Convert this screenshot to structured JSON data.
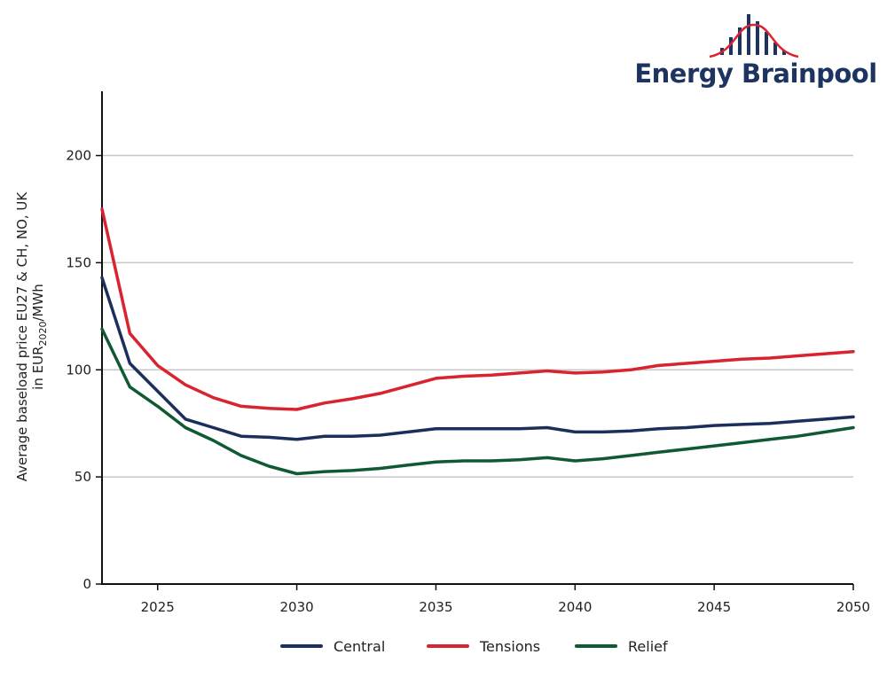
{
  "logo": {
    "text": "Energy Brainpool",
    "text_color": "#1d3461",
    "accent_color": "#d9232e"
  },
  "chart_data": {
    "type": "line",
    "title": "",
    "ylabel_line1": "Average baseload price EU27 & CH, NO, UK",
    "ylabel_line2_prefix": "in EUR",
    "ylabel_line2_sub": "2020",
    "ylabel_line2_suffix": "/MWh",
    "xlabel": "",
    "xlim": [
      2023,
      2050
    ],
    "ylim": [
      0,
      230
    ],
    "xticks": [
      2025,
      2030,
      2035,
      2040,
      2045,
      2050
    ],
    "yticks": [
      0,
      50,
      100,
      150,
      200
    ],
    "grid": "horizontal",
    "legend": "bottom",
    "x": [
      2023,
      2024,
      2025,
      2026,
      2027,
      2028,
      2029,
      2030,
      2031,
      2032,
      2033,
      2034,
      2035,
      2036,
      2037,
      2038,
      2039,
      2040,
      2041,
      2042,
      2043,
      2044,
      2045,
      2046,
      2047,
      2048,
      2049,
      2050
    ],
    "series": [
      {
        "name": "Central",
        "color": "#1b2f5c",
        "values": [
          143,
          103,
          90,
          77,
          73,
          69,
          68.5,
          67.5,
          69,
          69,
          69.5,
          71,
          72.5,
          72.5,
          72.5,
          72.5,
          73,
          71,
          71,
          71.5,
          72.5,
          73,
          74,
          74.5,
          75,
          76,
          77,
          78
        ]
      },
      {
        "name": "Tensions",
        "color": "#d9232e",
        "values": [
          175,
          117,
          102,
          93,
          87,
          83,
          82,
          81.5,
          84.5,
          86.5,
          89,
          92.5,
          96,
          97,
          97.5,
          98.5,
          99.5,
          98.5,
          99,
          100,
          102,
          103,
          104,
          105,
          105.5,
          106.5,
          107.5,
          108.5
        ]
      },
      {
        "name": "Relief",
        "color": "#0f5a32",
        "values": [
          119,
          92,
          83,
          73,
          67,
          60,
          55,
          51.5,
          52.5,
          53,
          54,
          55.5,
          57,
          57.5,
          57.5,
          58,
          59,
          57.5,
          58.5,
          60,
          61.5,
          63,
          64.5,
          66,
          67.5,
          69,
          71,
          73
        ]
      }
    ]
  }
}
